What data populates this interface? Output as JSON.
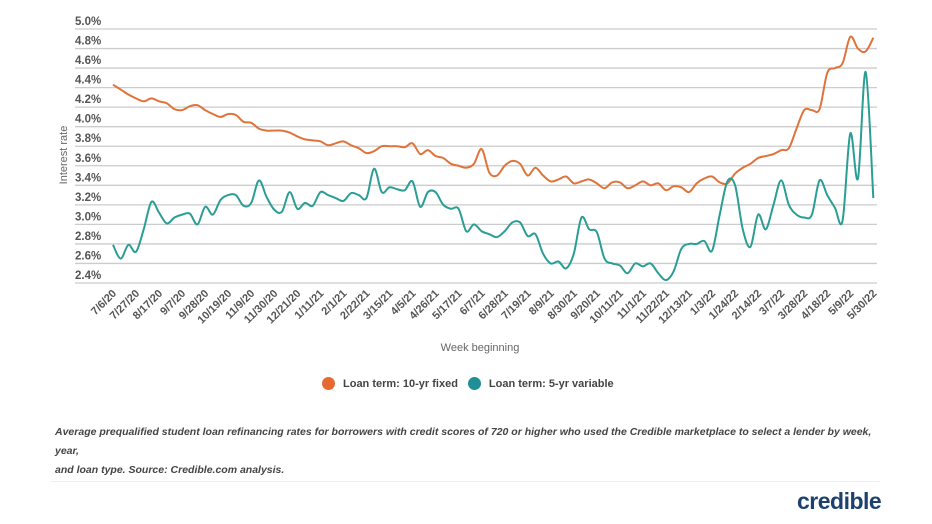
{
  "chart_data": {
    "type": "line",
    "title": "",
    "xlabel": "Week beginning",
    "ylabel": "Interest rate",
    "ylim": [
      2.4,
      5.0
    ],
    "yticks": [
      "2.4%",
      "2.6%",
      "2.8%",
      "3.0%",
      "3.2%",
      "3.4%",
      "3.6%",
      "3.8%",
      "4.0%",
      "4.2%",
      "4.4%",
      "4.6%",
      "4.8%",
      "5.0%"
    ],
    "ytick_values": [
      2.4,
      2.6,
      2.8,
      3.0,
      3.2,
      3.4,
      3.6,
      3.8,
      4.0,
      4.2,
      4.4,
      4.6,
      4.8,
      5.0
    ],
    "grid": true,
    "legend_position": "bottom",
    "x_tick_labels": [
      "7/6/20",
      "7/27/20",
      "8/17/20",
      "9/7/20",
      "9/28/20",
      "10/19/20",
      "11/9/20",
      "11/30/20",
      "12/21/20",
      "1/11/21",
      "2/1/21",
      "2/22/21",
      "3/15/21",
      "4/5/21",
      "4/26/21",
      "5/17/21",
      "6/7/21",
      "6/28/21",
      "7/19/21",
      "8/9/21",
      "8/30/21",
      "9/20/21",
      "10/11/21",
      "11/1/21",
      "11/22/21",
      "12/13/21",
      "1/3/22",
      "1/24/22",
      "2/14/22",
      "3/7/22",
      "3/28/22",
      "4/18/22",
      "5/9/22",
      "5/30/22"
    ],
    "x_tick_every_weeks": 3,
    "x_start": "7/6/20",
    "x_end": "5/30/22",
    "series": [
      {
        "name": "Loan term: 10-yr fixed",
        "color": "#e0733a",
        "values": [
          4.43,
          4.38,
          4.33,
          4.29,
          4.26,
          4.29,
          4.26,
          4.24,
          4.18,
          4.17,
          4.21,
          4.22,
          4.17,
          4.13,
          4.1,
          4.13,
          4.12,
          4.05,
          4.04,
          3.98,
          3.96,
          3.96,
          3.96,
          3.94,
          3.9,
          3.87,
          3.86,
          3.85,
          3.81,
          3.83,
          3.85,
          3.81,
          3.78,
          3.73,
          3.75,
          3.8,
          3.8,
          3.8,
          3.79,
          3.83,
          3.72,
          3.76,
          3.7,
          3.68,
          3.62,
          3.6,
          3.58,
          3.62,
          3.77,
          3.53,
          3.5,
          3.6,
          3.65,
          3.62,
          3.5,
          3.58,
          3.5,
          3.44,
          3.46,
          3.49,
          3.42,
          3.44,
          3.46,
          3.42,
          3.37,
          3.43,
          3.43,
          3.37,
          3.4,
          3.44,
          3.4,
          3.42,
          3.35,
          3.39,
          3.38,
          3.33,
          3.42,
          3.47,
          3.49,
          3.43,
          3.42,
          3.52,
          3.58,
          3.62,
          3.68,
          3.7,
          3.72,
          3.76,
          3.78,
          3.98,
          4.17,
          4.17,
          4.18,
          4.55,
          4.6,
          4.65,
          4.92,
          4.8,
          4.77,
          4.91
        ]
      },
      {
        "name": "Loan term: 5-yr variable",
        "color": "#2a9d95",
        "values": [
          2.79,
          2.65,
          2.79,
          2.72,
          2.95,
          3.23,
          3.12,
          3.01,
          3.07,
          3.1,
          3.11,
          3.0,
          3.18,
          3.1,
          3.25,
          3.3,
          3.3,
          3.19,
          3.22,
          3.45,
          3.28,
          3.15,
          3.13,
          3.33,
          3.16,
          3.22,
          3.19,
          3.33,
          3.3,
          3.27,
          3.24,
          3.32,
          3.3,
          3.27,
          3.57,
          3.33,
          3.38,
          3.36,
          3.35,
          3.44,
          3.18,
          3.33,
          3.33,
          3.2,
          3.16,
          3.16,
          2.93,
          3.0,
          2.93,
          2.9,
          2.87,
          2.93,
          3.02,
          3.02,
          2.88,
          2.9,
          2.7,
          2.6,
          2.62,
          2.55,
          2.7,
          3.07,
          2.95,
          2.92,
          2.65,
          2.6,
          2.58,
          2.5,
          2.6,
          2.57,
          2.6,
          2.5,
          2.43,
          2.52,
          2.75,
          2.8,
          2.8,
          2.83,
          2.73,
          3.1,
          3.44,
          3.4,
          2.95,
          2.77,
          3.1,
          2.95,
          3.2,
          3.45,
          3.2,
          3.1,
          3.07,
          3.1,
          3.45,
          3.3,
          3.17,
          3.04,
          3.93,
          3.47,
          4.56,
          3.27
        ]
      }
    ]
  },
  "caption": {
    "line1": "Average prequalified student loan refinancing rates for borrowers with credit scores of 720 or higher who used the Credible marketplace to select a lender by week, year,",
    "line2": "and loan type. Source: Credible.com analysis."
  },
  "logo": {
    "text": "credible",
    "color": "#1d416f"
  }
}
